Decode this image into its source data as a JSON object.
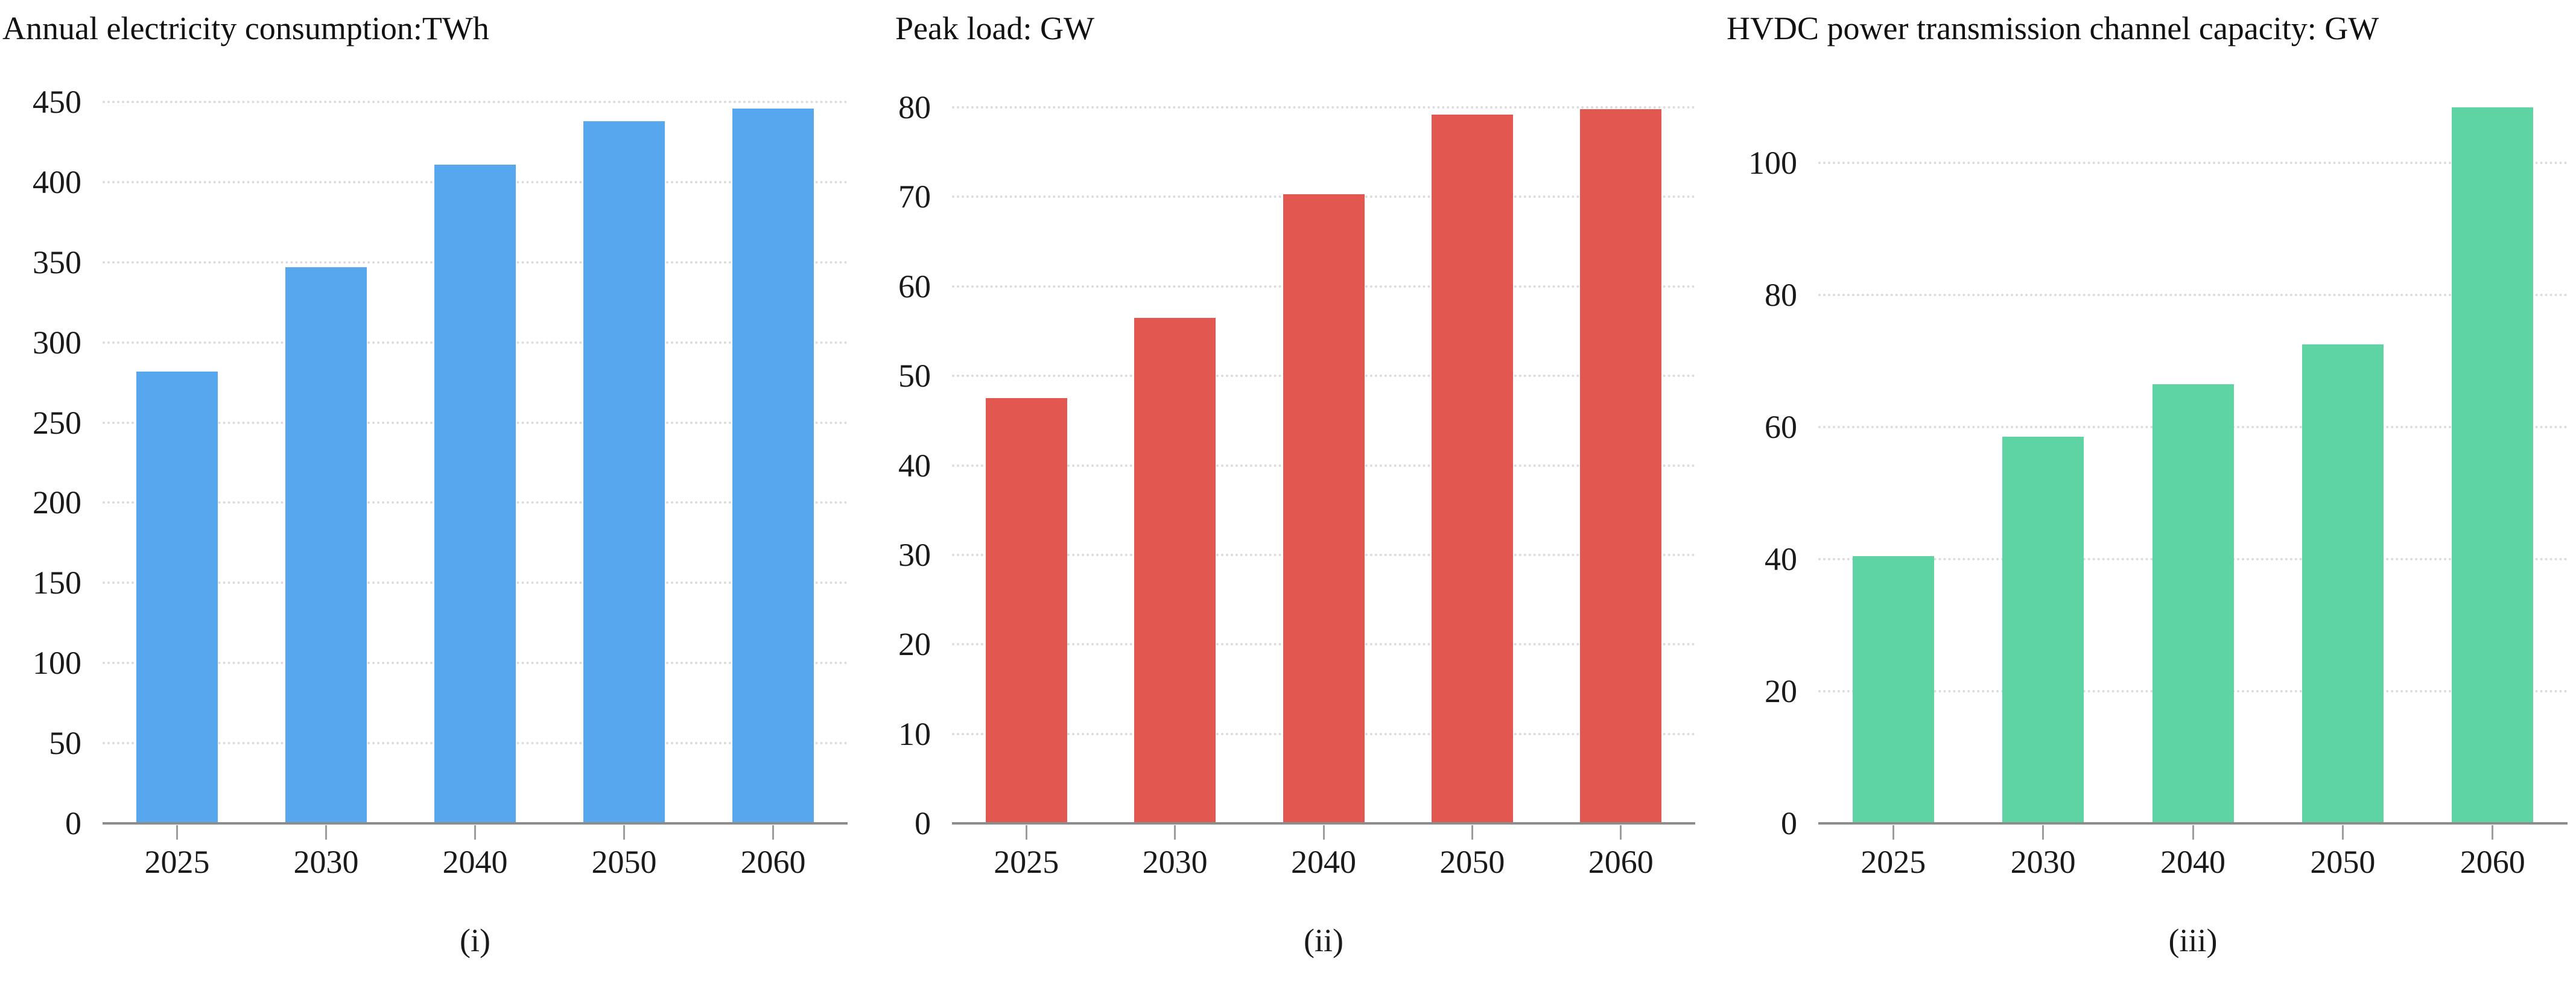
{
  "style": {
    "background": "#ffffff",
    "axis_color": "#8c8c8c",
    "grid_color": "#dcdcdc",
    "tick_color": "#9c9c9c",
    "text_color": "#1a1a1a"
  },
  "chart_data": [
    {
      "type": "bar",
      "title": "Annual electricity consumption:TWh",
      "caption": "(i)",
      "categories": [
        "2025",
        "2030",
        "2040",
        "2050",
        "2060"
      ],
      "values": [
        282,
        347,
        411,
        438,
        446
      ],
      "bar_color": "#57a7ee",
      "xlabel": "",
      "ylabel": "",
      "ylim": [
        0,
        450
      ],
      "yticks": [
        0,
        50,
        100,
        150,
        200,
        250,
        300,
        350,
        400,
        450
      ],
      "grid": "horizontal-dotted",
      "legend": "none"
    },
    {
      "type": "bar",
      "title": "Peak load: GW",
      "caption": "(ii)",
      "categories": [
        "2025",
        "2030",
        "2040",
        "2050",
        "2060"
      ],
      "values": [
        47.5,
        56.5,
        70.3,
        79.2,
        79.8
      ],
      "bar_color": "#e2574f",
      "xlabel": "",
      "ylabel": "",
      "ylim": [
        0,
        80
      ],
      "yticks": [
        0,
        10,
        20,
        30,
        40,
        50,
        60,
        70,
        80
      ],
      "grid": "horizontal-dotted",
      "legend": "none"
    },
    {
      "type": "bar",
      "title": "HVDC power transmission channel capacity: GW",
      "caption": "(iii)",
      "categories": [
        "2025",
        "2030",
        "2040",
        "2050",
        "2060"
      ],
      "values": [
        40.5,
        58.5,
        66.5,
        72.5,
        108.4
      ],
      "bar_color": "#5ed3a4",
      "xlabel": "",
      "ylabel": "",
      "ylim": [
        0,
        110
      ],
      "yticks": [
        0,
        20,
        40,
        60,
        80,
        100
      ],
      "grid": "horizontal-dotted",
      "legend": "none"
    }
  ]
}
